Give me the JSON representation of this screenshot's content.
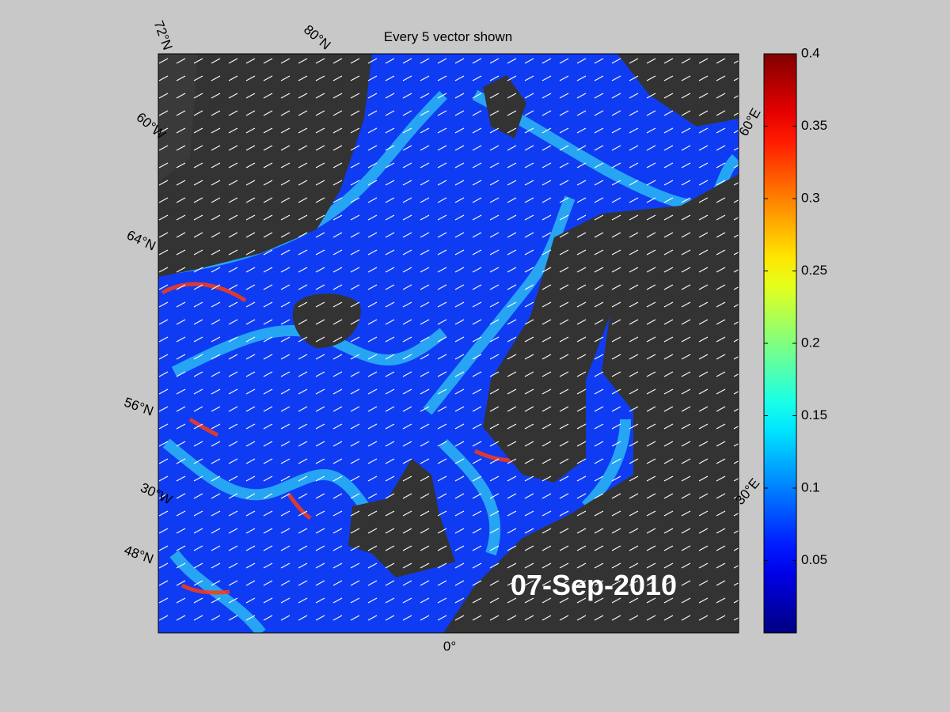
{
  "title": "Every 5 vector shown",
  "date": "07-Sep-2010",
  "graticule_labels": [
    "72°N",
    "80°N",
    "60°W",
    "64°N",
    "56°N",
    "30°W",
    "48°N",
    "0°",
    "30°E",
    "60°E"
  ],
  "colorbar": {
    "colormap": "jet",
    "lim": [
      0,
      0.4
    ],
    "ticks": [
      0.05,
      0.1,
      0.15,
      0.2,
      0.25,
      0.3,
      0.35,
      0.4
    ]
  }
}
